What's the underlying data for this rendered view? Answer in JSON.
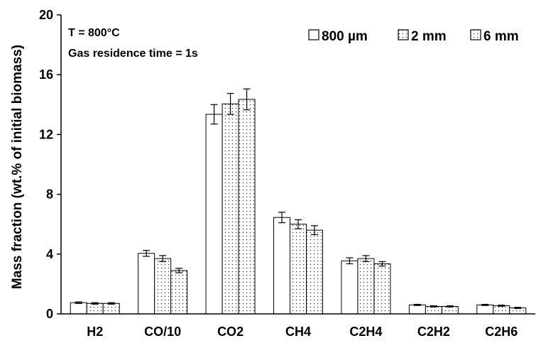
{
  "chart_data": {
    "type": "bar",
    "title": "",
    "xlabel": "",
    "ylabel": "Mass fraction (wt.% of initial biomass)",
    "ylim": [
      0,
      20
    ],
    "yticks": [
      "0",
      "4",
      "8",
      "12",
      "16",
      "20"
    ],
    "grid": false,
    "legend_position": "top-right",
    "annotations": [
      "T = 800°C",
      "Gas residence time = 1s"
    ],
    "categories": [
      "H2",
      "CO/10",
      "CO2",
      "CH4",
      "C2H4",
      "C2H2",
      "C2H6"
    ],
    "series": [
      {
        "name": "800 µm",
        "fill": "plain",
        "values": [
          0.75,
          4.05,
          13.35,
          6.45,
          3.55,
          0.6,
          0.6
        ],
        "errors": [
          0.05,
          0.2,
          0.65,
          0.35,
          0.2,
          0.04,
          0.04
        ]
      },
      {
        "name": "2 mm",
        "fill": "dotted",
        "values": [
          0.7,
          3.7,
          14.05,
          6.0,
          3.7,
          0.5,
          0.55
        ],
        "errors": [
          0.05,
          0.2,
          0.7,
          0.3,
          0.2,
          0.04,
          0.04
        ]
      },
      {
        "name": "6 mm",
        "fill": "dotted",
        "values": [
          0.7,
          2.9,
          14.35,
          5.6,
          3.35,
          0.5,
          0.4
        ],
        "errors": [
          0.05,
          0.15,
          0.7,
          0.3,
          0.15,
          0.04,
          0.04
        ]
      }
    ]
  }
}
